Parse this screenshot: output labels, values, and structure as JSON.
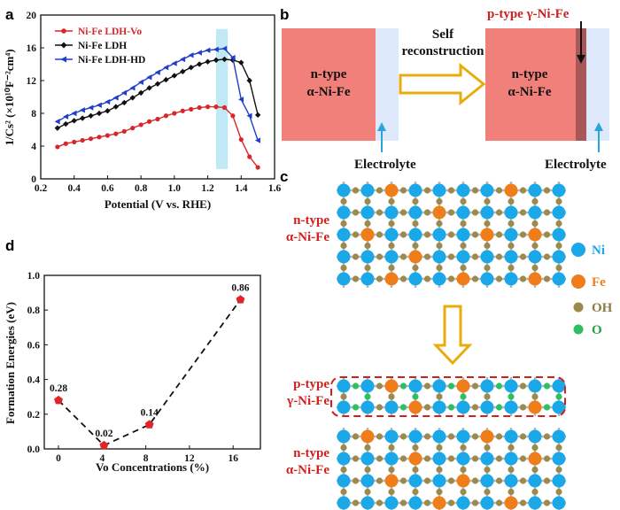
{
  "panels": {
    "a": "a",
    "b": "b",
    "c": "c",
    "d": "d"
  },
  "chart_data": [
    {
      "type": "line",
      "panel": "a",
      "xlabel": "Potential (V vs. RHE)",
      "ylabel": "1/Cs² (×10¹⁰F⁻²cm⁴)",
      "xlim": [
        0.2,
        1.6
      ],
      "ylim": [
        0,
        20
      ],
      "xticks": [
        "0.2",
        "0.4",
        "0.6",
        "0.8",
        "1.0",
        "1.2",
        "1.4",
        "1.6"
      ],
      "yticks": [
        "0",
        "4",
        "8",
        "12",
        "16",
        "20"
      ],
      "highlight_band": [
        1.25,
        1.32
      ],
      "series": [
        {
          "name": "Ni-Fe LDH-Vo",
          "color": "#d9262a",
          "marker": "circle",
          "x": [
            0.3,
            0.35,
            0.4,
            0.45,
            0.5,
            0.55,
            0.6,
            0.65,
            0.7,
            0.75,
            0.8,
            0.85,
            0.9,
            0.95,
            1.0,
            1.05,
            1.1,
            1.15,
            1.2,
            1.25,
            1.3,
            1.35,
            1.4,
            1.45,
            1.5
          ],
          "y": [
            3.9,
            4.3,
            4.5,
            4.7,
            4.9,
            5.1,
            5.3,
            5.5,
            5.8,
            6.2,
            6.6,
            7.0,
            7.3,
            7.7,
            8.0,
            8.3,
            8.5,
            8.7,
            8.8,
            8.8,
            8.7,
            7.7,
            4.8,
            2.7,
            1.4
          ]
        },
        {
          "name": "Ni-Fe LDH",
          "color": "#111111",
          "marker": "diamond",
          "x": [
            0.3,
            0.35,
            0.4,
            0.45,
            0.5,
            0.55,
            0.6,
            0.65,
            0.7,
            0.75,
            0.8,
            0.85,
            0.9,
            0.95,
            1.0,
            1.05,
            1.1,
            1.15,
            1.2,
            1.25,
            1.3,
            1.35,
            1.4,
            1.45,
            1.5
          ],
          "y": [
            6.2,
            6.7,
            7.1,
            7.4,
            7.7,
            8.0,
            8.3,
            8.8,
            9.3,
            9.9,
            10.5,
            11.1,
            11.6,
            12.1,
            12.6,
            13.1,
            13.6,
            14.0,
            14.3,
            14.5,
            14.6,
            14.5,
            14.2,
            12.0,
            7.8
          ]
        },
        {
          "name": "Ni-Fe LDH-HD",
          "color": "#1f3fc8",
          "marker": "triangle-left",
          "x": [
            0.3,
            0.35,
            0.4,
            0.45,
            0.5,
            0.55,
            0.6,
            0.65,
            0.7,
            0.75,
            0.8,
            0.85,
            0.9,
            0.95,
            1.0,
            1.05,
            1.1,
            1.15,
            1.2,
            1.25,
            1.3,
            1.35,
            1.4,
            1.45,
            1.5
          ],
          "y": [
            7.0,
            7.6,
            8.0,
            8.4,
            8.7,
            9.0,
            9.4,
            9.9,
            10.5,
            11.1,
            11.8,
            12.4,
            13.0,
            13.6,
            14.1,
            14.6,
            15.1,
            15.4,
            15.7,
            15.8,
            15.9,
            14.8,
            9.7,
            7.7,
            4.7
          ]
        }
      ]
    },
    {
      "type": "scatter",
      "panel": "d",
      "xlabel": "Vo Concentrations (%)",
      "ylabel": "Formation Energies (eV)",
      "xlim": [
        -1.3,
        18.5
      ],
      "ylim": [
        0.0,
        1.0
      ],
      "xticks": [
        "0",
        "4",
        "8",
        "12",
        "16"
      ],
      "yticks": [
        "0.0",
        "0.2",
        "0.4",
        "0.6",
        "0.8",
        "1.0"
      ],
      "x": [
        0,
        4.17,
        8.33,
        16.67
      ],
      "y": [
        0.28,
        0.02,
        0.14,
        0.86
      ],
      "point_labels": [
        "0.28",
        "0.02",
        "0.14",
        "0.86"
      ],
      "color": "#e0242a",
      "line": "dashed"
    }
  ],
  "schematic_b": {
    "left_block": {
      "line1": "n-type",
      "line2": "α-Ni-Fe"
    },
    "arrow_label": {
      "line1": "Self",
      "line2": "reconstruction"
    },
    "right_block": {
      "line1": "n-type",
      "line2": "α-Ni-Fe"
    },
    "right_top_label": "p-type γ-Ni-Fe",
    "electrolyte_left": "Electrolyte",
    "electrolyte_right": "Electrolyte"
  },
  "schematic_c": {
    "top_label": {
      "line1": "n-type",
      "line2": "α-Ni-Fe"
    },
    "mid_label": {
      "line1": "p-type",
      "line2": "γ-Ni-Fe"
    },
    "bottom_label": {
      "line1": "n-type",
      "line2": "α-Ni-Fe"
    },
    "legend": [
      "Ni",
      "Fe",
      "OH",
      "O"
    ],
    "colors": {
      "Ni": "#1aa8e8",
      "Fe": "#ee7d1a",
      "OH": "#9b8a4e",
      "O": "#2dbf62",
      "bond": "#b8b8b8"
    }
  }
}
